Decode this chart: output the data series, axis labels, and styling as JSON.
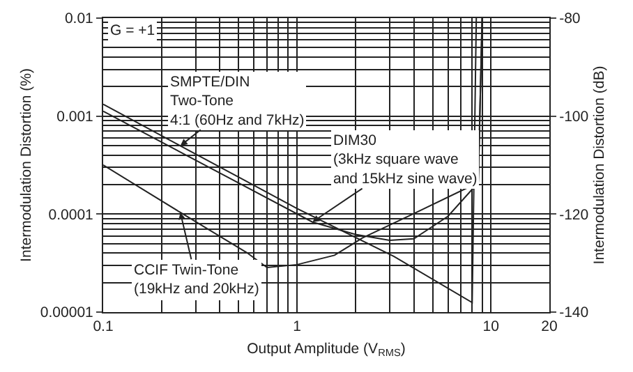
{
  "chart_data": {
    "type": "line",
    "xlabel": "Output Amplitude (V$_{RMS}$)",
    "ylabel": "Intermodulation Distortion (%)",
    "y2label": "Intermodulation Distortion (dB)",
    "annotations": [
      "G = +1"
    ],
    "log": "xy",
    "grid": true,
    "legend": false,
    "marker": "none",
    "line_style": "solid",
    "xlim": [
      0.1,
      20
    ],
    "xticks": [
      0.1,
      1,
      10,
      20
    ],
    "ylim": [
      1e-05,
      0.01
    ],
    "yticks": [
      {
        "value": 1e-05,
        "label": "0.00001"
      },
      {
        "value": 0.0001,
        "label": "0.0001"
      },
      {
        "value": 0.001,
        "label": "0.001"
      },
      {
        "value": 0.01,
        "label": "0.01"
      }
    ],
    "y2lim": [
      -140,
      -80
    ],
    "y2ticks": [
      -140,
      -120,
      -100,
      -80
    ],
    "series": [
      {
        "name": "SMPTE/DIN\nTwo-Tone\n4:1 (60Hz and 7kHz)",
        "color": "#222222",
        "x": [
          0.1,
          0.25,
          1,
          3.16,
          8.0,
          8.4
        ],
        "values": [
          0.00132,
          0.000498,
          0.000114,
          3.7e-05,
          1.25e-05,
          0.01
        ]
      },
      {
        "name": "DIM30\n(3kHz square wave\nand 15kHz sine wave)",
        "color": "#222222",
        "x": [
          0.1,
          1.2,
          2,
          3,
          4,
          6,
          8.6,
          9.0
        ],
        "values": [
          0.00112,
          8.3e-05,
          6.2e-05,
          5.4e-05,
          5.6e-05,
          9.5e-05,
          0.00021,
          0.01
        ]
      },
      {
        "name": "CCIF Twin-Tone\n(19kHz and 20kHz)",
        "color": "#222222",
        "x": [
          0.1,
          0.25,
          0.55,
          0.7,
          1,
          1.56,
          2.17,
          4,
          8.6,
          9.0
        ],
        "values": [
          0.000317,
          0.000104,
          4.05e-05,
          2.85e-05,
          3.05e-05,
          3.8e-05,
          5.7e-05,
          0.000101,
          0.00021,
          0.01
        ]
      }
    ]
  }
}
